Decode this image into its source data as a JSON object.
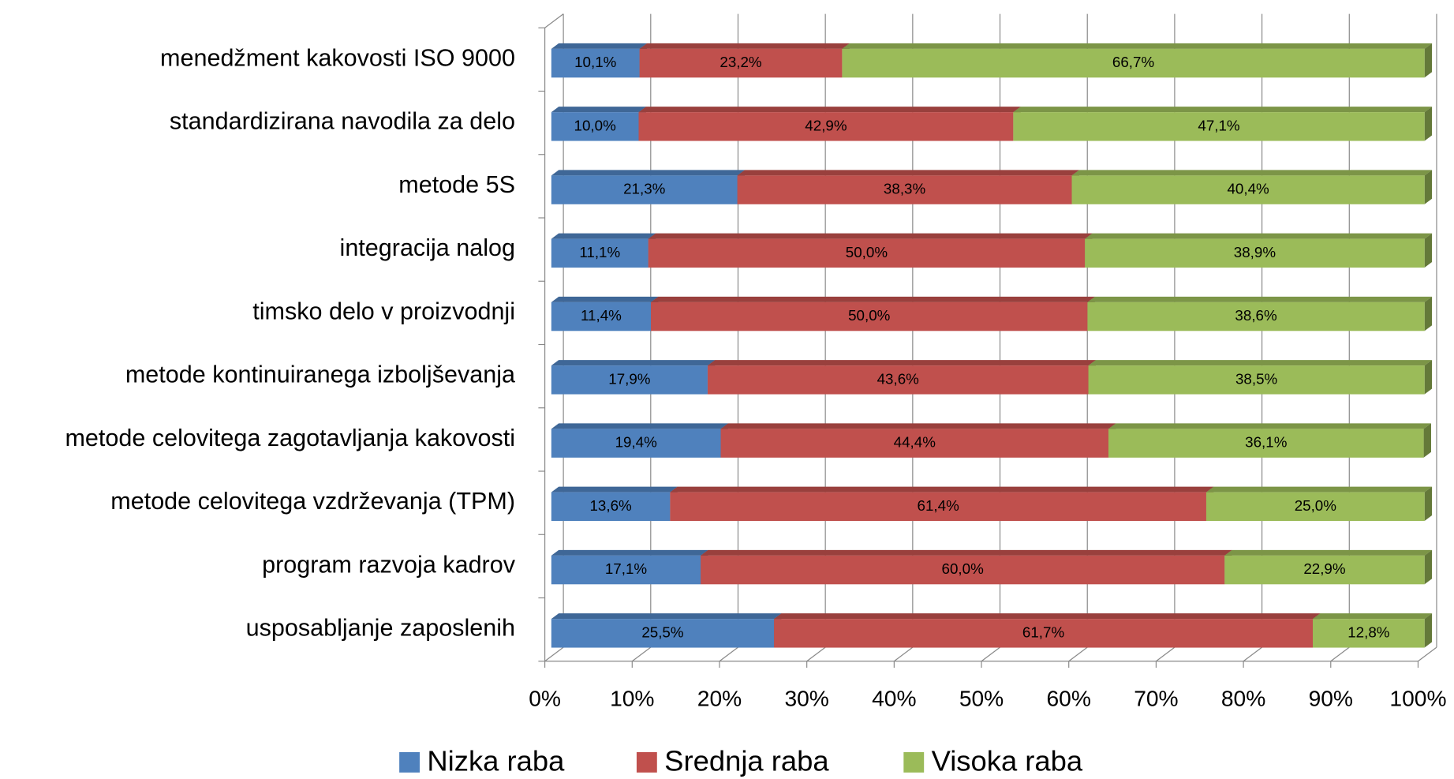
{
  "chart_data": {
    "type": "stacked_bar_horizontal",
    "categories": [
      "menedžment kakovosti ISO 9000",
      "standardizirana navodila za delo",
      "metode 5S",
      "integracija nalog",
      "timsko delo v proizvodnji",
      "metode kontinuiranega izboljševanja",
      "metode celovitega zagotavljanja kakovosti",
      "metode celovitega vzdrževanja (TPM)",
      "program razvoja kadrov",
      "usposabljanje zaposlenih"
    ],
    "series": [
      {
        "name": "Nizka raba",
        "color": "#4f81bd",
        "values": [
          10.1,
          10.0,
          21.3,
          11.1,
          11.4,
          17.9,
          19.4,
          13.6,
          17.1,
          25.5
        ],
        "value_labels": [
          "10,1%",
          "10,0%",
          "21,3%",
          "11,1%",
          "11,4%",
          "17,9%",
          "19,4%",
          "13,6%",
          "17,1%",
          "25,5%"
        ]
      },
      {
        "name": "Srednja raba",
        "color": "#c0504d",
        "values": [
          23.2,
          42.9,
          38.3,
          50.0,
          50.0,
          43.6,
          44.4,
          61.4,
          60.0,
          61.7
        ],
        "value_labels": [
          "23,2%",
          "42,9%",
          "38,3%",
          "50,0%",
          "50,0%",
          "43,6%",
          "44,4%",
          "61,4%",
          "60,0%",
          "61,7%"
        ]
      },
      {
        "name": "Visoka raba",
        "color": "#9bbb59",
        "values": [
          66.7,
          47.1,
          40.4,
          38.9,
          38.6,
          38.5,
          36.1,
          25.0,
          22.9,
          12.8
        ],
        "value_labels": [
          "66,7%",
          "47,1%",
          "40,4%",
          "38,9%",
          "38,6%",
          "38,5%",
          "36,1%",
          "25,0%",
          "22,9%",
          "12,8%"
        ]
      }
    ],
    "xlim": [
      0,
      100
    ],
    "xticks": [
      {
        "value": 0,
        "label": "0%"
      },
      {
        "value": 10,
        "label": "10%"
      },
      {
        "value": 20,
        "label": "20%"
      },
      {
        "value": 30,
        "label": "30%"
      },
      {
        "value": 40,
        "label": "40%"
      },
      {
        "value": 50,
        "label": "50%"
      },
      {
        "value": 60,
        "label": "60%"
      },
      {
        "value": 70,
        "label": "70%"
      },
      {
        "value": 80,
        "label": "80%"
      },
      {
        "value": 90,
        "label": "90%"
      },
      {
        "value": 100,
        "label": "100%"
      }
    ],
    "grid": true,
    "legend": "bottom"
  }
}
